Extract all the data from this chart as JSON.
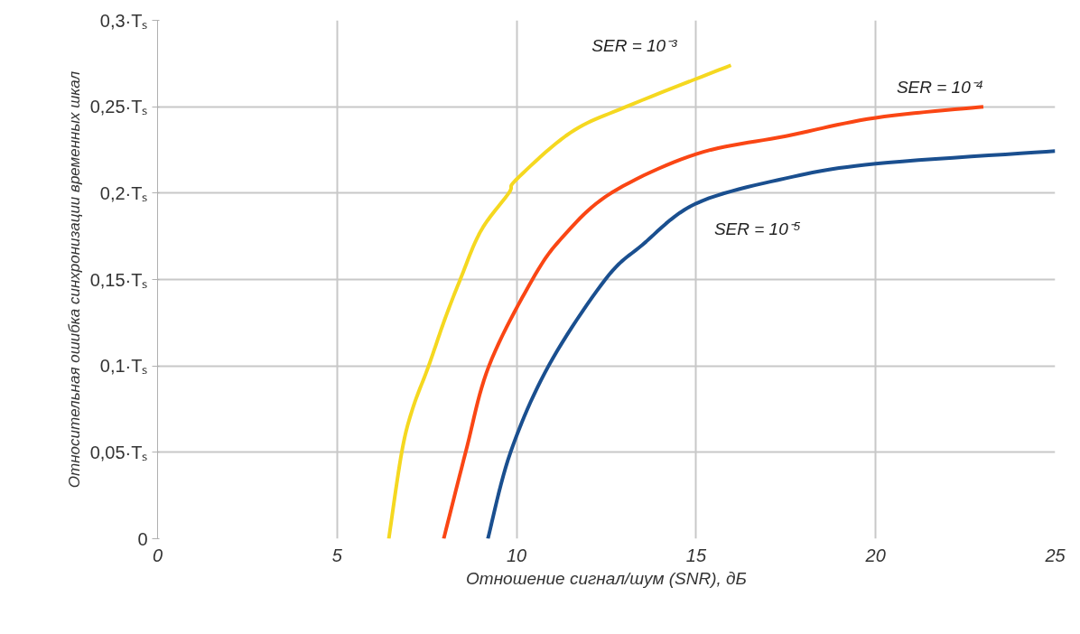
{
  "chart_data": {
    "type": "line",
    "xlabel": "Отношение сигнал/шум (SNR), дБ",
    "ylabel": "Относительная ошибка синхронизации временных шкал",
    "xlim": [
      0,
      25
    ],
    "xticks": [
      0,
      5,
      10,
      15,
      20,
      25
    ],
    "ylim": [
      0,
      0.3
    ],
    "yticks": [
      {
        "value": 0,
        "label": "0"
      },
      {
        "value": 0.05,
        "label": "0,05·Tₛ"
      },
      {
        "value": 0.1,
        "label": "0,1·Tₛ"
      },
      {
        "value": 0.15,
        "label": "0,15·Tₛ"
      },
      {
        "value": 0.2,
        "label": "0,2·Tₛ"
      },
      {
        "value": 0.25,
        "label": "0,25·Tₛ"
      },
      {
        "value": 0.3,
        "label": "0,3·Tₛ"
      }
    ],
    "grid": true,
    "line_style": "solid",
    "marker": "none",
    "series": [
      {
        "name": "SER = 10⁻³",
        "color": "#f5d820",
        "x": [
          6.44,
          6.8,
          7.1,
          7.55,
          8.0,
          8.43,
          9.0,
          9.78,
          10.0,
          11.5,
          13.05,
          15.97
        ],
        "values": [
          0,
          0.05,
          0.075,
          0.1,
          0.127,
          0.15,
          0.178,
          0.2,
          0.208,
          0.235,
          0.25,
          0.274
        ]
      },
      {
        "name": "SER = 10⁻⁴",
        "color": "#fa4614",
        "x": [
          7.97,
          8.58,
          9.23,
          10.44,
          11.3,
          12.63,
          15,
          17.5,
          20,
          23
        ],
        "values": [
          0,
          0.05,
          0.1,
          0.15,
          0.175,
          0.2,
          0.2226,
          0.233,
          0.2436,
          0.25
        ]
      },
      {
        "name": "SER = 10⁻⁵",
        "color": "#1a4f8f",
        "x": [
          9.2,
          9.83,
          10.89,
          12.47,
          13.5,
          15,
          17.5,
          20,
          25
        ],
        "values": [
          0,
          0.05,
          0.1,
          0.15,
          0.17,
          0.194,
          0.2086,
          0.217,
          0.2243
        ]
      }
    ]
  }
}
